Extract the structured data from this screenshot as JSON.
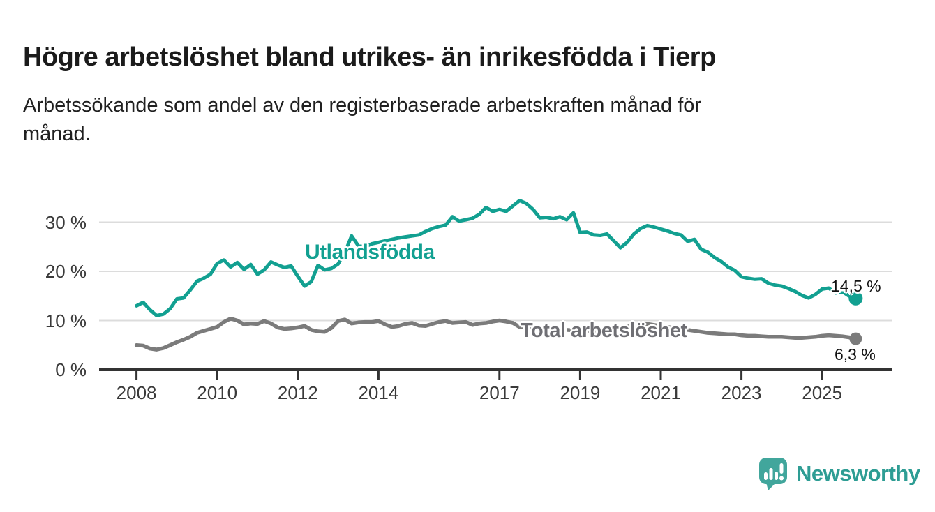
{
  "title": "Högre arbetslöshet bland utrikes- än inrikesfödda i Tierp",
  "subtitle_lines": [
    "Arbetssökande som andel av den registerbaserade arbetskraften månad för",
    "månad."
  ],
  "chart_data": {
    "type": "line",
    "unit": "%",
    "grid": "horizontal",
    "x_start": 2008.0,
    "x_step_years": 0.1667,
    "xlim": [
      2007.07,
      2026.72
    ],
    "ylim": [
      0,
      35.5
    ],
    "x_ticks": [
      {
        "value": 2008,
        "label": "2008"
      },
      {
        "value": 2010,
        "label": "2010"
      },
      {
        "value": 2012,
        "label": "2012"
      },
      {
        "value": 2014,
        "label": "2014"
      },
      {
        "value": 2017,
        "label": "2017"
      },
      {
        "value": 2019,
        "label": "2019"
      },
      {
        "value": 2021,
        "label": "2021"
      },
      {
        "value": 2023,
        "label": "2023"
      },
      {
        "value": 2025,
        "label": "2025"
      }
    ],
    "y_ticks": [
      {
        "value": 0,
        "label": "0 %"
      },
      {
        "value": 10,
        "label": "10 %"
      },
      {
        "value": 20,
        "label": "20 %"
      },
      {
        "value": 30,
        "label": "30 %"
      }
    ],
    "series": [
      {
        "name": "Utlandsfödda",
        "color": "#12a091",
        "label_color": "#12a091",
        "line_width": 5,
        "dot_radius": 10,
        "end_value": 14.5,
        "end_label": "14,5 %",
        "values": [
          13.0,
          13.7,
          12.2,
          11.0,
          11.3,
          12.4,
          14.4,
          14.6,
          16.2,
          18.0,
          18.6,
          19.4,
          21.6,
          22.3,
          20.9,
          21.8,
          20.4,
          21.4,
          19.4,
          20.3,
          21.9,
          21.3,
          20.8,
          21.1,
          19.0,
          17.0,
          17.9,
          21.2,
          20.3,
          20.6,
          21.5,
          23.8,
          27.2,
          25.2,
          25.0,
          25.6,
          25.9,
          26.2,
          26.5,
          26.8,
          27.0,
          27.2,
          27.4,
          28.1,
          28.7,
          29.1,
          29.4,
          31.1,
          30.2,
          30.5,
          30.8,
          31.6,
          33.0,
          32.2,
          32.6,
          32.2,
          33.3,
          34.4,
          33.8,
          32.6,
          30.9,
          31.0,
          30.7,
          31.1,
          30.5,
          31.9,
          27.9,
          28.0,
          27.4,
          27.3,
          27.6,
          26.2,
          24.8,
          25.9,
          27.6,
          28.7,
          29.3,
          29.0,
          28.6,
          28.2,
          27.7,
          27.4,
          26.1,
          26.5,
          24.5,
          23.9,
          22.8,
          22.0,
          20.9,
          20.2,
          18.9,
          18.6,
          18.4,
          18.5,
          17.6,
          17.2,
          17.0,
          16.5,
          15.9,
          15.1,
          14.6,
          15.3,
          16.4,
          16.6,
          15.6,
          15.9,
          15.0,
          14.5
        ]
      },
      {
        "name": "Total arbetslöshet",
        "color": "#7b7b7b",
        "label_color": "#6f6f74",
        "line_width": 5.5,
        "dot_radius": 9,
        "end_value": 6.3,
        "end_label": "6,3 %",
        "values": [
          5.0,
          4.9,
          4.3,
          4.1,
          4.4,
          5.0,
          5.6,
          6.1,
          6.7,
          7.5,
          7.9,
          8.3,
          8.7,
          9.7,
          10.4,
          10.0,
          9.2,
          9.4,
          9.3,
          9.9,
          9.4,
          8.6,
          8.3,
          8.4,
          8.6,
          8.9,
          8.1,
          7.8,
          7.7,
          8.5,
          9.9,
          10.2,
          9.4,
          9.6,
          9.7,
          9.7,
          9.9,
          9.2,
          8.7,
          8.9,
          9.3,
          9.5,
          9.0,
          8.9,
          9.3,
          9.7,
          9.9,
          9.5,
          9.6,
          9.7,
          9.1,
          9.4,
          9.5,
          9.8,
          10.0,
          9.8,
          9.5,
          8.7,
          8.6,
          8.5,
          8.5,
          8.4,
          8.3,
          8.2,
          8.1,
          8.0,
          8.0,
          7.9,
          7.9,
          7.8,
          7.8,
          7.9,
          8.2,
          8.7,
          9.2,
          9.4,
          9.3,
          9.1,
          8.9,
          8.7,
          8.5,
          8.3,
          8.1,
          7.9,
          7.7,
          7.5,
          7.4,
          7.3,
          7.2,
          7.2,
          7.0,
          6.9,
          6.9,
          6.8,
          6.7,
          6.7,
          6.7,
          6.6,
          6.5,
          6.5,
          6.6,
          6.7,
          6.9,
          7.0,
          6.9,
          6.8,
          6.6,
          6.3
        ]
      }
    ]
  },
  "logo": {
    "text": "Newsworthy",
    "color": "#2e9d94",
    "badge_color": "#41a69c",
    "icon": "bar-chart-speech-bubble"
  }
}
